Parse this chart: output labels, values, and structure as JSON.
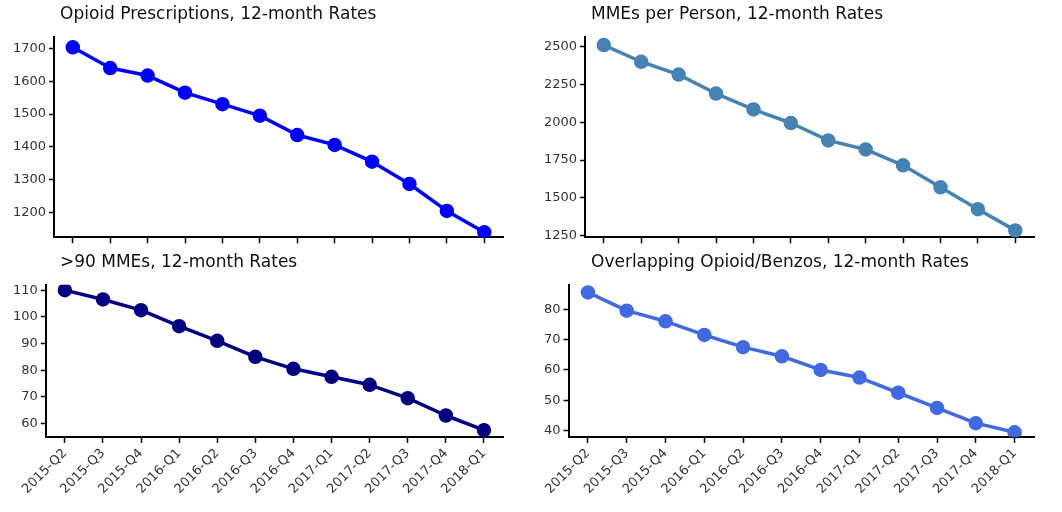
{
  "chart_data": [
    {
      "type": "line",
      "title": "Opioid Prescriptions, 12-month Rates",
      "categories": [
        null,
        null,
        null,
        null,
        null,
        null,
        null,
        null,
        null,
        null,
        null,
        null
      ],
      "series": [
        {
          "color": "#0000ff",
          "values": [
            1703,
            1640,
            1617,
            1565,
            1530,
            1495,
            1436,
            1406,
            1355,
            1287,
            1205,
            1140
          ]
        }
      ],
      "ylim": [
        1125,
        1735
      ],
      "yticks": [
        1200,
        1300,
        1400,
        1500,
        1600,
        1700
      ],
      "grid": false,
      "legend": false,
      "marker": "circle",
      "line_style": "solid",
      "tick_labels": "y"
    },
    {
      "type": "line",
      "title": "MMEs per Person, 12-month Rates",
      "categories": [
        null,
        null,
        null,
        null,
        null,
        null,
        null,
        null,
        null,
        null,
        null,
        null
      ],
      "series": [
        {
          "color": "#4682b4",
          "values": [
            2510,
            2400,
            2315,
            2190,
            2085,
            1995,
            1880,
            1820,
            1715,
            1570,
            1425,
            1285
          ]
        }
      ],
      "ylim": [
        1240,
        2565
      ],
      "yticks": [
        1250,
        1500,
        1750,
        2000,
        2250,
        2500
      ],
      "grid": false,
      "legend": false,
      "marker": "circle",
      "line_style": "solid",
      "tick_labels": "y"
    },
    {
      "type": "line",
      "title": ">90 MMEs, 12-month Rates",
      "categories": [
        "2015-Q2",
        "2015-Q3",
        "2015-Q4",
        "2016-Q1",
        "2016-Q2",
        "2016-Q3",
        "2016-Q4",
        "2017-Q1",
        "2017-Q2",
        "2017-Q3",
        "2017-Q4",
        "2018-Q1"
      ],
      "series": [
        {
          "color": "#000080",
          "values": [
            110,
            106.5,
            102.5,
            96.5,
            91,
            85,
            80.5,
            77.5,
            74.5,
            69.5,
            63,
            57.5
          ]
        }
      ],
      "ylim": [
        55,
        112
      ],
      "yticks": [
        60,
        70,
        80,
        90,
        100,
        110
      ],
      "grid": false,
      "legend": false,
      "marker": "circle",
      "line_style": "solid"
    },
    {
      "type": "line",
      "title": "Overlapping Opioid/Benzos, 12-month Rates",
      "categories": [
        "2015-Q2",
        "2015-Q3",
        "2015-Q4",
        "2016-Q1",
        "2016-Q2",
        "2016-Q3",
        "2016-Q4",
        "2017-Q1",
        "2017-Q2",
        "2017-Q3",
        "2017-Q4",
        "2018-Q1"
      ],
      "series": [
        {
          "color": "#4169e1",
          "values": [
            85.5,
            79.5,
            76,
            71.5,
            67.5,
            64.5,
            60,
            57.5,
            52.5,
            47.5,
            42.5,
            39.5
          ]
        }
      ],
      "ylim": [
        38,
        88
      ],
      "yticks": [
        40,
        50,
        60,
        70,
        80
      ],
      "grid": false,
      "legend": false,
      "marker": "circle",
      "line_style": "solid"
    }
  ]
}
